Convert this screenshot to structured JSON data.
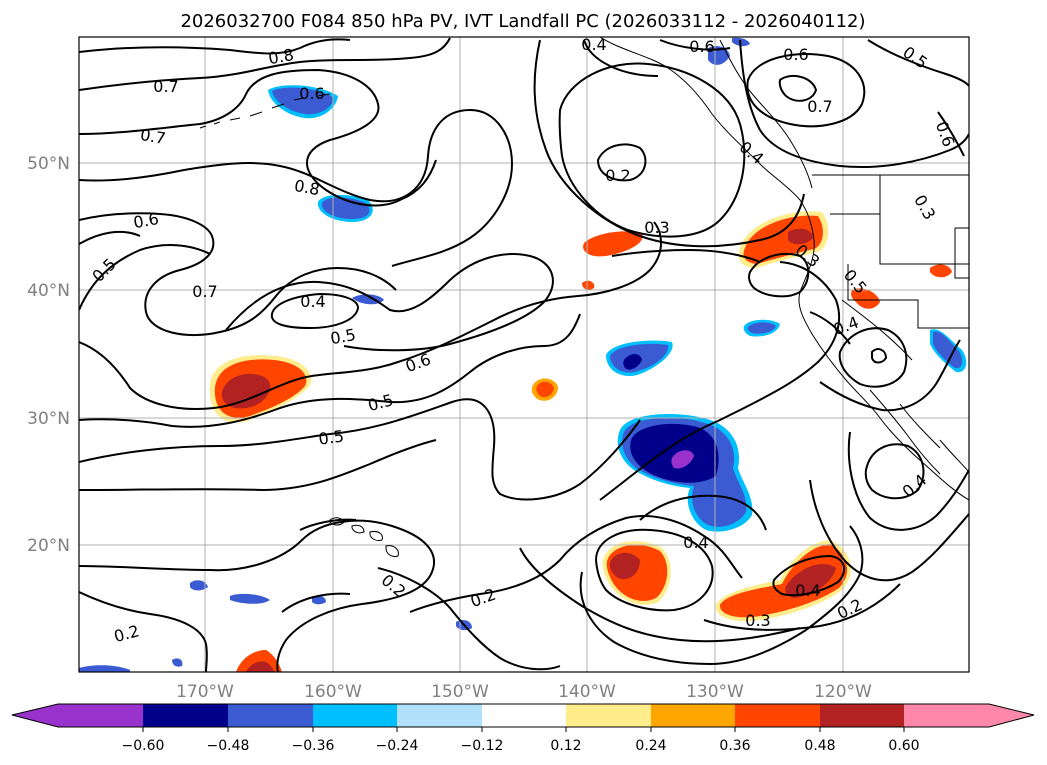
{
  "title": "2026032700 F084 850 hPa PV, IVT Landfall PC (2026033112 - 2026040112)",
  "map": {
    "lat_labels": [
      "50°N",
      "40°N",
      "30°N",
      "20°N"
    ],
    "lon_labels": [
      "170°W",
      "160°W",
      "150°W",
      "140°W",
      "130°W",
      "120°W"
    ]
  },
  "contour_labels": [
    "0.8",
    "0.7",
    "0.7",
    "0.6",
    "0.8",
    "0.6",
    "0.5",
    "0.7",
    "0.5",
    "0.4",
    "0.5",
    "0.6",
    "0.5",
    "0.4",
    "0.2",
    "0.3",
    "0.6",
    "0.6",
    "0.7",
    "0.5",
    "0.6",
    "0.4",
    "0.3",
    "0.2",
    "0.3",
    "0.5",
    "0.4",
    "0.4",
    "0.2",
    "0.2",
    "0.4",
    "0.4",
    "0.3",
    "0.2"
  ],
  "colorbar": {
    "ticks": [
      "−0.60",
      "−0.48",
      "−0.36",
      "−0.24",
      "−0.12",
      "0.12",
      "0.24",
      "0.36",
      "0.48",
      "0.60"
    ],
    "colors": {
      "under": "#9932cc",
      "c1": "#00008b",
      "c2": "#3b5bd3",
      "c3": "#00bfff",
      "c4": "#b0e0fa",
      "mid": "#ffffff",
      "c6": "#ffec8b",
      "c7": "#ffa500",
      "c8": "#ff4500",
      "c9": "#b22222",
      "over": "#ff88aa"
    }
  }
}
